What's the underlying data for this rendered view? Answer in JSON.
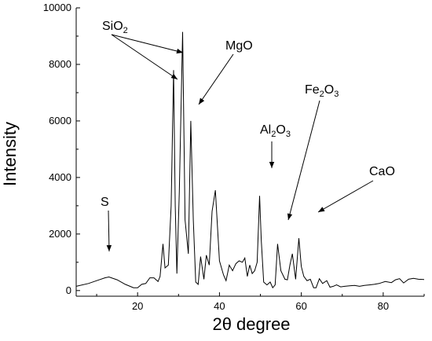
{
  "chart_data": {
    "type": "line",
    "title": "",
    "xlabel": "2θ degree",
    "ylabel": "Intensity",
    "xlim": [
      5,
      90
    ],
    "ylim": [
      -200,
      10000
    ],
    "x_ticks": [
      20,
      40,
      60,
      80
    ],
    "y_ticks": [
      0,
      2000,
      4000,
      6000,
      8000,
      10000
    ],
    "x_tick_labels": [
      "20",
      "40",
      "60",
      "80"
    ],
    "y_tick_labels": [
      "0",
      "2000",
      "4000",
      "6000",
      "8000",
      "10000"
    ],
    "grid": false,
    "legend": "none",
    "series": [
      {
        "x": [
          5,
          8,
          10,
          12,
          13,
          15,
          17,
          19,
          20,
          21,
          22,
          23,
          24,
          25,
          25.5,
          26.2,
          26.7,
          27.5,
          28.2,
          28.8,
          29.2,
          29.6,
          30.2,
          31,
          31.6,
          32.4,
          33,
          33.6,
          34.2,
          34.8,
          35.4,
          36.2,
          36.8,
          37.5,
          38.2,
          39,
          40,
          41,
          41.6,
          42.4,
          43.2,
          44,
          44.8,
          45.6,
          46.2,
          46.8,
          47.4,
          48,
          48.6,
          49.2,
          49.8,
          50.2,
          50.8,
          51.6,
          52.4,
          53,
          53.6,
          54.2,
          55,
          56,
          56.6,
          57.2,
          57.8,
          58.6,
          59.4,
          60,
          60.6,
          61.4,
          62.2,
          63,
          63.6,
          64.4,
          65.2,
          66.2,
          67,
          67.8,
          68.6,
          69.6,
          70.6,
          71.8,
          73,
          74.2,
          75.4,
          76.6,
          77.8,
          79,
          80.5,
          82,
          83,
          84,
          85,
          86.2,
          87.4,
          88.6,
          90
        ],
        "y": [
          150,
          250,
          350,
          450,
          480,
          380,
          220,
          100,
          100,
          220,
          250,
          450,
          450,
          320,
          500,
          1650,
          800,
          900,
          3000,
          7800,
          3000,
          600,
          3500,
          9150,
          2500,
          1300,
          6000,
          2500,
          300,
          220,
          1200,
          400,
          1250,
          900,
          2800,
          3550,
          1050,
          550,
          350,
          900,
          700,
          950,
          1050,
          1000,
          1150,
          500,
          900,
          600,
          700,
          1000,
          3350,
          1800,
          300,
          200,
          300,
          100,
          200,
          1650,
          700,
          400,
          380,
          900,
          1300,
          400,
          1850,
          850,
          500,
          350,
          400,
          100,
          100,
          420,
          250,
          350,
          120,
          150,
          200,
          130,
          150,
          170,
          180,
          150,
          180,
          200,
          220,
          250,
          320,
          280,
          380,
          420,
          270,
          400,
          430,
          400,
          390
        ]
      }
    ],
    "annotations": [
      {
        "label": "S",
        "subscript": "",
        "suffix": ""
      },
      {
        "label": "SiO",
        "subscript": "2",
        "suffix": ""
      },
      {
        "label": "MgO",
        "subscript": "",
        "suffix": ""
      },
      {
        "label": "Al",
        "subscript": "2",
        "suffix": "O",
        "subscript2": "3"
      },
      {
        "label": "Fe",
        "subscript": "2",
        "suffix": "O",
        "subscript2": "3"
      },
      {
        "label": "CaO",
        "subscript": "",
        "suffix": ""
      }
    ]
  }
}
